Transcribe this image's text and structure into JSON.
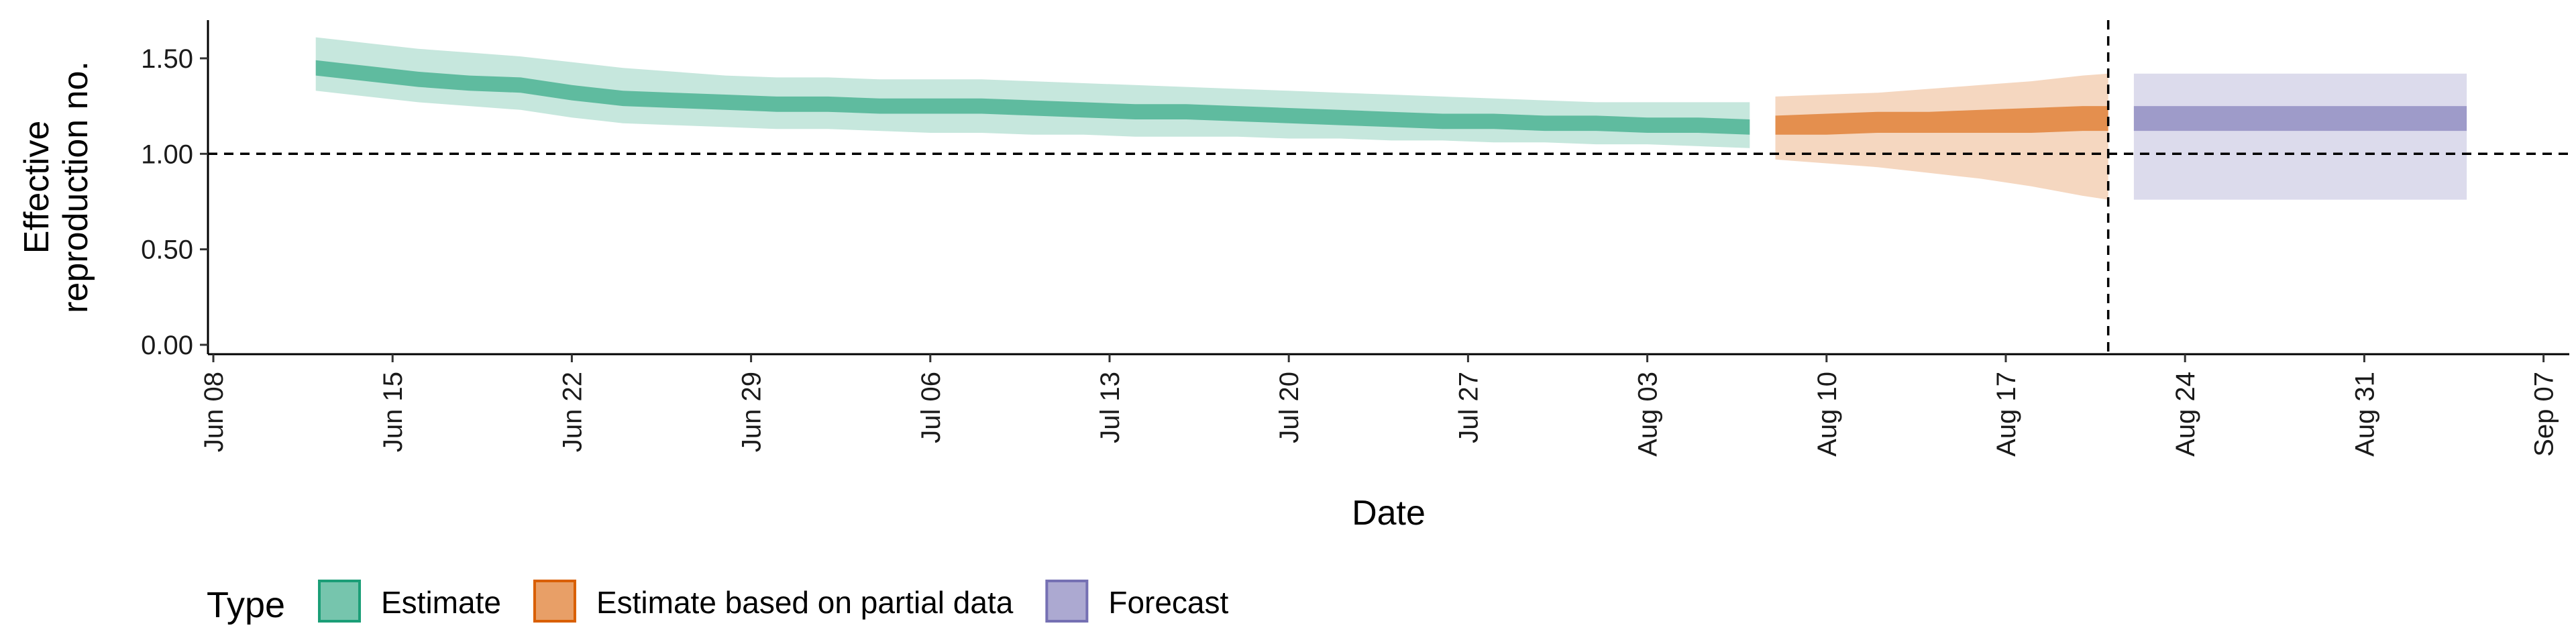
{
  "chart_data": {
    "type": "area",
    "xlabel": "Date",
    "ylabel": [
      "Effective",
      "reproduction no."
    ],
    "ylim": [
      0,
      1.7
    ],
    "xlim": [
      "2020-06-08",
      "2020-09-08"
    ],
    "y_ticks": [
      "0.00",
      "0.50",
      "1.00",
      "1.50"
    ],
    "x_ticks": [
      "Jun 08",
      "Jun 15",
      "Jun 22",
      "Jun 29",
      "Jul 06",
      "Jul 13",
      "Jul 20",
      "Jul 27",
      "Aug 03",
      "Aug 10",
      "Aug 17",
      "Aug 24",
      "Aug 31",
      "Sep 07"
    ],
    "x_tick_dates": [
      "2020-06-08",
      "2020-06-15",
      "2020-06-22",
      "2020-06-29",
      "2020-07-06",
      "2020-07-13",
      "2020-07-20",
      "2020-07-27",
      "2020-08-03",
      "2020-08-10",
      "2020-08-17",
      "2020-08-24",
      "2020-08-31",
      "2020-09-07"
    ],
    "reference_lines": {
      "horizontal_y": 1.0,
      "vertical_x": "2020-08-21"
    },
    "grid": false,
    "legend": {
      "position": "bottom",
      "title": "Type"
    },
    "series": [
      {
        "name": "Estimate",
        "color": "#1b9e77",
        "x": [
          "2020-06-12",
          "2020-06-14",
          "2020-06-16",
          "2020-06-18",
          "2020-06-20",
          "2020-06-22",
          "2020-06-24",
          "2020-06-26",
          "2020-06-28",
          "2020-06-30",
          "2020-07-02",
          "2020-07-04",
          "2020-07-06",
          "2020-07-08",
          "2020-07-10",
          "2020-07-12",
          "2020-07-14",
          "2020-07-16",
          "2020-07-18",
          "2020-07-20",
          "2020-07-22",
          "2020-07-24",
          "2020-07-26",
          "2020-07-28",
          "2020-07-30",
          "2020-08-01",
          "2020-08-03",
          "2020-08-05",
          "2020-08-07"
        ],
        "median": [
          1.45,
          1.42,
          1.39,
          1.37,
          1.36,
          1.32,
          1.29,
          1.28,
          1.27,
          1.26,
          1.26,
          1.25,
          1.25,
          1.25,
          1.24,
          1.23,
          1.22,
          1.22,
          1.21,
          1.2,
          1.19,
          1.18,
          1.17,
          1.17,
          1.16,
          1.16,
          1.15,
          1.15,
          1.14
        ],
        "lower_50": [
          1.41,
          1.38,
          1.35,
          1.33,
          1.32,
          1.28,
          1.25,
          1.24,
          1.23,
          1.22,
          1.22,
          1.21,
          1.21,
          1.21,
          1.2,
          1.19,
          1.18,
          1.18,
          1.17,
          1.16,
          1.15,
          1.14,
          1.13,
          1.13,
          1.12,
          1.12,
          1.11,
          1.11,
          1.1
        ],
        "upper_50": [
          1.49,
          1.46,
          1.43,
          1.41,
          1.4,
          1.36,
          1.33,
          1.32,
          1.31,
          1.3,
          1.3,
          1.29,
          1.29,
          1.29,
          1.28,
          1.27,
          1.26,
          1.26,
          1.25,
          1.24,
          1.23,
          1.22,
          1.21,
          1.21,
          1.2,
          1.2,
          1.19,
          1.19,
          1.18
        ],
        "lower_90": [
          1.33,
          1.3,
          1.27,
          1.25,
          1.23,
          1.19,
          1.16,
          1.15,
          1.14,
          1.13,
          1.13,
          1.12,
          1.11,
          1.11,
          1.1,
          1.1,
          1.09,
          1.09,
          1.09,
          1.08,
          1.08,
          1.07,
          1.07,
          1.06,
          1.06,
          1.05,
          1.05,
          1.04,
          1.03
        ],
        "upper_90": [
          1.61,
          1.58,
          1.55,
          1.53,
          1.51,
          1.48,
          1.45,
          1.43,
          1.41,
          1.4,
          1.4,
          1.39,
          1.39,
          1.39,
          1.38,
          1.37,
          1.36,
          1.35,
          1.34,
          1.33,
          1.32,
          1.31,
          1.3,
          1.29,
          1.28,
          1.27,
          1.27,
          1.27,
          1.27
        ]
      },
      {
        "name": "Estimate based on partial data",
        "color": "#d95f02",
        "x": [
          "2020-08-08",
          "2020-08-10",
          "2020-08-12",
          "2020-08-14",
          "2020-08-16",
          "2020-08-18",
          "2020-08-20",
          "2020-08-21"
        ],
        "median": [
          1.15,
          1.16,
          1.17,
          1.17,
          1.18,
          1.18,
          1.19,
          1.19
        ],
        "lower_50": [
          1.1,
          1.1,
          1.11,
          1.11,
          1.11,
          1.11,
          1.12,
          1.12
        ],
        "upper_50": [
          1.2,
          1.21,
          1.22,
          1.22,
          1.23,
          1.24,
          1.25,
          1.25
        ],
        "lower_90": [
          0.97,
          0.95,
          0.93,
          0.9,
          0.87,
          0.83,
          0.78,
          0.76
        ],
        "upper_90": [
          1.3,
          1.31,
          1.32,
          1.34,
          1.36,
          1.38,
          1.41,
          1.42
        ]
      },
      {
        "name": "Forecast",
        "color": "#7570b3",
        "x": [
          "2020-08-22",
          "2020-09-04"
        ],
        "median": [
          1.19,
          1.19
        ],
        "lower_50": [
          1.12,
          1.12
        ],
        "upper_50": [
          1.25,
          1.25
        ],
        "lower_90": [
          0.76,
          0.76
        ],
        "upper_90": [
          1.42,
          1.42
        ]
      }
    ]
  }
}
